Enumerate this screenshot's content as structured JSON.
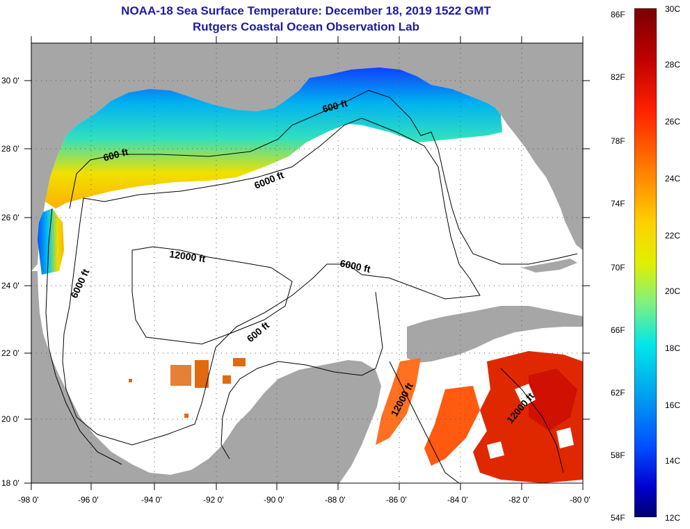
{
  "title": {
    "line1": "NOAA-18 Sea Surface Temperature:  December 18, 2019 1522 GMT",
    "line2": "Rutgers Coastal Ocean Observation Lab"
  },
  "map": {
    "lat_labels": [
      "30 0'",
      "28 0'",
      "26 0'",
      "24 0'",
      "22 0'",
      "20 0'",
      "18 0'"
    ],
    "lon_labels": [
      "-98 0'",
      "-96 0'",
      "-94 0'",
      "-92 0'",
      "-90 0'",
      "-88 0'",
      "-86 0'",
      "-84 0'",
      "-82 0'",
      "-80 0'"
    ],
    "contour_labels": {
      "c600_west": "600 ft",
      "c600_east": "600 ft",
      "c6000_north": "6000 ft",
      "c6000_west": "6000 ft",
      "c6000_central": "6000 ft",
      "c12000_central": "12000 ft",
      "c600_yucatan": "600 ft",
      "c12000_caribbean_a": "12000 ft",
      "c12000_caribbean_b": "12000 ft"
    }
  },
  "colorbar": {
    "f_labels": [
      "86F",
      "82F",
      "78F",
      "74F",
      "70F",
      "66F",
      "62F",
      "58F",
      "54F"
    ],
    "c_labels": [
      "30C",
      "28C",
      "26C",
      "24C",
      "22C",
      "20C",
      "18C",
      "16C",
      "14C",
      "12C"
    ],
    "colors": [
      "#7a0000",
      "#c80000",
      "#ff2a00",
      "#ff8a00",
      "#ffd000",
      "#ddf000",
      "#80f080",
      "#00e0e0",
      "#00a0f0",
      "#0050ff",
      "#0000d0",
      "#000080"
    ]
  },
  "colors": {
    "land": "#a6a6a6",
    "water": "#ffffff"
  }
}
